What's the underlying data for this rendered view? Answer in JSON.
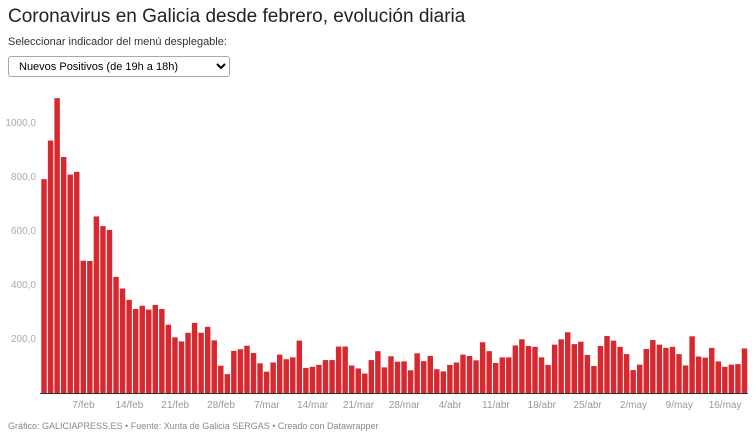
{
  "title": "Coronavirus en Galicia desde febrero, evolución diaria",
  "subtitle": "Seleccionar indicador del menú desplegable:",
  "dropdown": {
    "selected": "Nuevos Positivos (de 19h a 18h)"
  },
  "footer": "Gráfico: GALICIAPRESS.ES • Fuente: Xunta de Galicia SERGAS • Creado con Datawrapper",
  "colors": {
    "bar": "#d7282f",
    "axis_label": "#aaaaaa"
  },
  "chart_data": {
    "type": "bar",
    "title": "",
    "xlabel": "",
    "ylabel": "",
    "ylim": [
      0,
      1100
    ],
    "yticks": [
      200,
      400,
      600,
      800,
      1000
    ],
    "ytick_labels": [
      "200,0",
      "400,0",
      "600,0",
      "800,0",
      "1000,0"
    ],
    "date_range": [
      "1/feb",
      "19/may"
    ],
    "xtick_labels": [
      "7/feb",
      "14/feb",
      "21/feb",
      "28/feb",
      "7/mar",
      "14/mar",
      "21/mar",
      "28/mar",
      "4/abr",
      "11/abr",
      "18/abr",
      "25/abr",
      "2/may",
      "9/may",
      "16/may"
    ],
    "xtick_index": [
      6,
      13,
      20,
      27,
      34,
      41,
      48,
      55,
      62,
      69,
      76,
      83,
      90,
      97,
      104
    ],
    "grid": false,
    "values": [
      792,
      935,
      1092,
      874,
      809,
      819,
      490,
      489,
      654,
      618,
      604,
      430,
      387,
      345,
      311,
      323,
      309,
      326,
      311,
      253,
      206,
      191,
      223,
      260,
      223,
      245,
      195,
      101,
      70,
      156,
      162,
      175,
      148,
      110,
      79,
      113,
      142,
      125,
      132,
      194,
      93,
      97,
      104,
      122,
      122,
      172,
      172,
      102,
      91,
      72,
      122,
      155,
      95,
      136,
      116,
      117,
      84,
      147,
      118,
      137,
      88,
      80,
      104,
      113,
      142,
      137,
      121,
      188,
      155,
      111,
      132,
      132,
      176,
      199,
      174,
      171,
      132,
      104,
      179,
      199,
      225,
      181,
      190,
      141,
      100,
      174,
      211,
      194,
      171,
      144,
      85,
      105,
      163,
      196,
      179,
      167,
      171,
      144,
      102,
      210,
      135,
      131,
      167,
      117,
      97,
      105,
      107,
      165
    ]
  }
}
